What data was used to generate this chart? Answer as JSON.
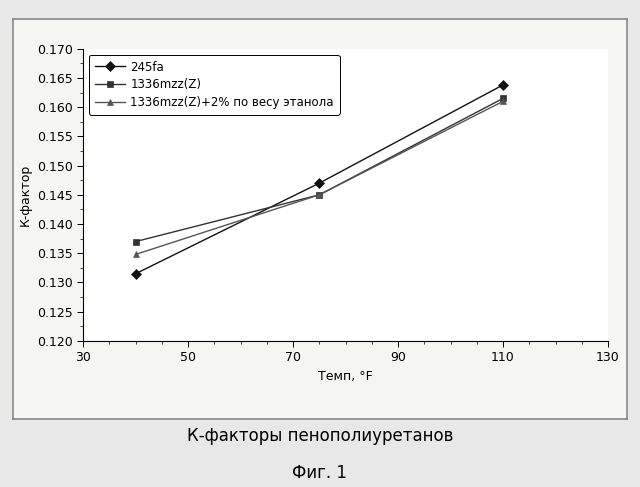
{
  "series": [
    {
      "label": "245fa",
      "x": [
        40,
        75,
        110
      ],
      "y": [
        0.1315,
        0.147,
        0.1638
      ],
      "marker": "D",
      "color": "#111111",
      "markersize": 5,
      "linewidth": 1.0
    },
    {
      "label": "1336mzz(Z)",
      "x": [
        40,
        75,
        110
      ],
      "y": [
        0.137,
        0.145,
        0.1615
      ],
      "marker": "s",
      "color": "#333333",
      "markersize": 5,
      "linewidth": 1.0
    },
    {
      "label": "1336mzz(Z)+2% по весу этанола",
      "x": [
        40,
        75,
        110
      ],
      "y": [
        0.1348,
        0.145,
        0.161
      ],
      "marker": "^",
      "color": "#555555",
      "markersize": 5,
      "linewidth": 1.0
    }
  ],
  "xlim": [
    30,
    130
  ],
  "ylim": [
    0.12,
    0.17
  ],
  "xticks": [
    30,
    50,
    70,
    90,
    110,
    130
  ],
  "yticks": [
    0.12,
    0.125,
    0.13,
    0.135,
    0.14,
    0.145,
    0.15,
    0.155,
    0.16,
    0.165,
    0.17
  ],
  "xlabel": "Темп, °F",
  "ylabel": "К-фактор",
  "title": "К-факторы пенополиуретанов",
  "subtitle": "Фиг. 1",
  "outer_bg": "#e8e8e8",
  "inner_bg": "#f5f5f2",
  "plot_bg": "#ffffff",
  "border_color": "#888888",
  "legend_fontsize": 8.5,
  "axis_fontsize": 9,
  "title_fontsize": 12,
  "subtitle_fontsize": 12
}
